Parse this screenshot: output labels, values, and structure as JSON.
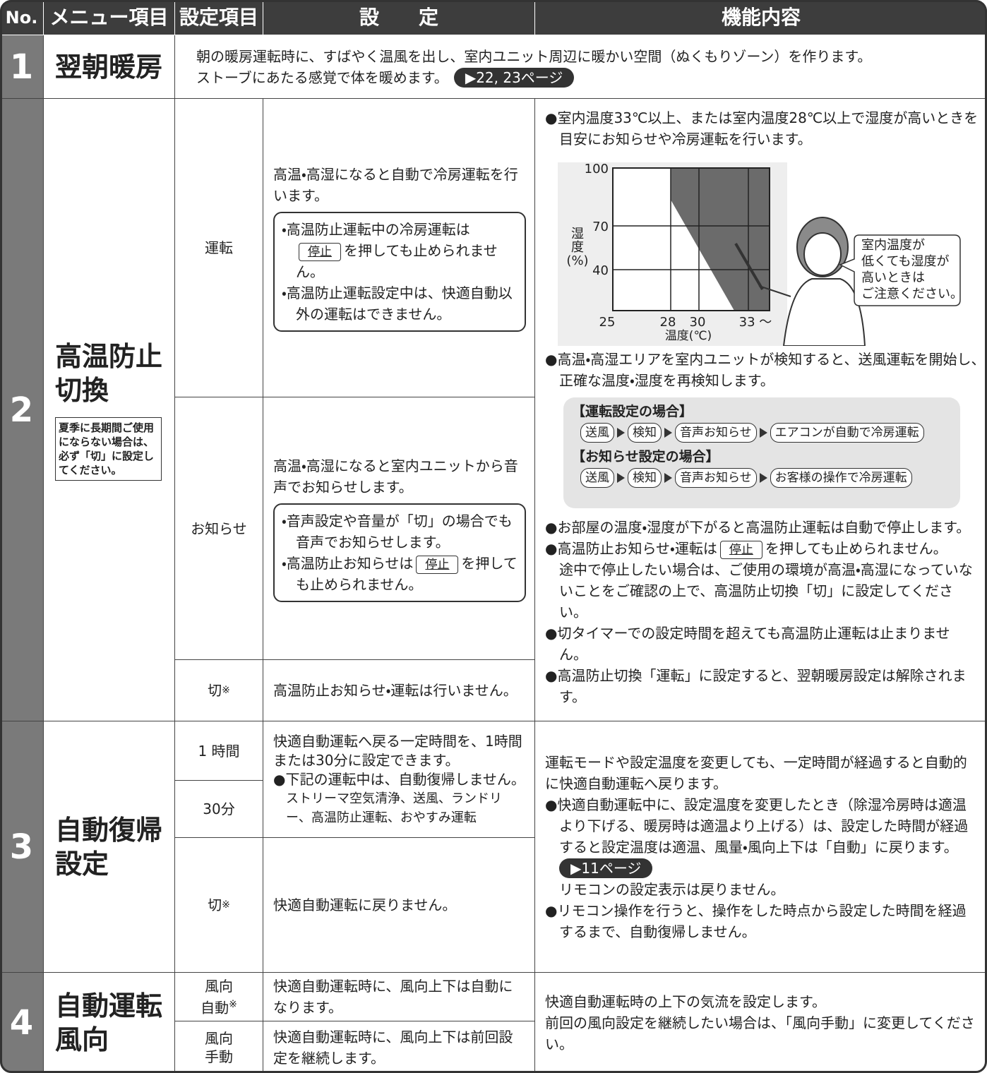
{
  "header": {
    "no": "No.",
    "menu": "メニュー項目",
    "item": "設定項目",
    "setting": "設　　定",
    "function": "機能内容"
  },
  "rows": [
    {
      "no": "1",
      "menu": [
        "翌朝暖房"
      ],
      "function": {
        "lines": [
          "朝の暖房運転時に、すばやく温風を出し、室内ユニット周辺に暖かい空間（ぬくもりゾーン）を作ります。",
          "ストーブにあたる感覚で体を暖めます。"
        ],
        "ref": "▶22, 23ページ"
      }
    },
    {
      "no": "2",
      "menu": [
        "高温防止",
        "切換"
      ],
      "note": "夏季に長期間ご使用にならない場合は、必ず「切」に設定してください。",
      "settings": [
        {
          "item": "運転",
          "text": "高温・高湿になると自動で冷房運転を行います。",
          "box": [
            {
              "pre": "・高温防止運転中の冷房運転は",
              "button": "停止",
              "post": "を押しても止められません。"
            },
            {
              "pre": "・高温防止運転設定中は、快適自動以外の運転はできません。"
            }
          ]
        },
        {
          "item": "お知らせ",
          "text": "高温・高湿になると室内ユニットから音声でお知らせします。",
          "box": [
            {
              "pre": "・音声設定や音量が「切」の場合でも音声でお知らせします。"
            },
            {
              "pre": "・高温防止お知らせは",
              "button": "停止",
              "post": "を押しても止められません。"
            }
          ]
        },
        {
          "item": "切",
          "mark": "※",
          "text": "高温防止お知らせ・運転は行いません。"
        }
      ],
      "function": {
        "intro": "●室内温度33℃以上、または室内温度28℃以上で湿度が高いときを目安にお知らせや冷房運転を行います。",
        "chart": {
          "ylabel": [
            "湿",
            "度",
            "(%)"
          ],
          "yticks": [
            "100",
            "70",
            "40"
          ],
          "xticks": [
            "25",
            "28",
            "30",
            "33 ～"
          ],
          "xlabel": "温度(℃)",
          "bubble": [
            "室内温度が",
            "低くても湿度が",
            "高いときは",
            "ご注意ください。"
          ]
        },
        "detect": "●高温・高湿エリアを室内ユニットが検知すると、送風運転を開始し、正確な温度・湿度を再検知します。",
        "flows": [
          {
            "title": "【運転設定の場合】",
            "steps": [
              "送風",
              "検知",
              "音声お知らせ",
              "エアコンが自動で冷房運転"
            ]
          },
          {
            "title": "【お知らせ設定の場合】",
            "steps": [
              "送風",
              "検知",
              "音声お知らせ",
              "お客様の操作で冷房運転"
            ]
          }
        ],
        "notes": [
          {
            "pre": "●お部屋の温度・湿度が下がると高温防止運転は自動で停止します。"
          },
          {
            "pre": "●高温防止お知らせ・運転は",
            "button": "停止",
            "post": "を押しても止められません。",
            "more": "途中で停止したい場合は、ご使用の環境が高温・高湿になっていないことをご確認の上で、高温防止切換「切」に設定してください。"
          },
          {
            "pre": "●切タイマーでの設定時間を超えても高温防止運転は止まりません。"
          },
          {
            "pre": "●高温防止切換「運転」に設定すると、翌朝暖房設定は解除されます。"
          }
        ]
      }
    },
    {
      "no": "3",
      "menu": [
        "自動復帰",
        "設定"
      ],
      "settings": [
        {
          "item": "1 時間"
        },
        {
          "item": "30分"
        },
        {
          "item": "切",
          "mark": "※",
          "text": "快適自動運転に戻りません。"
        }
      ],
      "shared": {
        "text": "快適自動運転へ戻る一定時間を、1時間または30分に設定できます。",
        "bullet": "●下記の運転中は、自動復帰しません。",
        "sub": "ストリーマ空気清浄、送風、ランドリー、高温防止運転、おやすみ運転"
      },
      "function": {
        "intro": "運転モードや設定温度を変更しても、一定時間が経過すると自動的に快適自動運転へ戻ります。",
        "bullet": "●快適自動運転中に、設定温度を変更したとき（除湿冷房時は適温より下げる、暖房時は適温より上げる）は、設定した時間が経過すると設定温度は適温、風量・風向上下は「自動」に戻ります。",
        "ref": "▶11ページ",
        "after": "リモコンの設定表示は戻りません。",
        "bullet2": "●リモコン操作を行うと、操作をした時点から設定した時間を経過するまで、自動復帰しません。"
      }
    },
    {
      "no": "4",
      "menu": [
        "自動運転",
        "風向"
      ],
      "settings": [
        {
          "item": [
            "風向",
            "自動"
          ],
          "mark": "※",
          "text": "快適自動運転時に、風向上下は自動になります。"
        },
        {
          "item": [
            "風向",
            "手動"
          ],
          "text": "快適自動運転時に、風向上下は前回設定を継続します。"
        }
      ],
      "function": [
        "快適自動運転時の上下の気流を設定します。",
        "前回の風向設定を継続したい場合は、「風向手動」に変更してください。"
      ]
    }
  ]
}
